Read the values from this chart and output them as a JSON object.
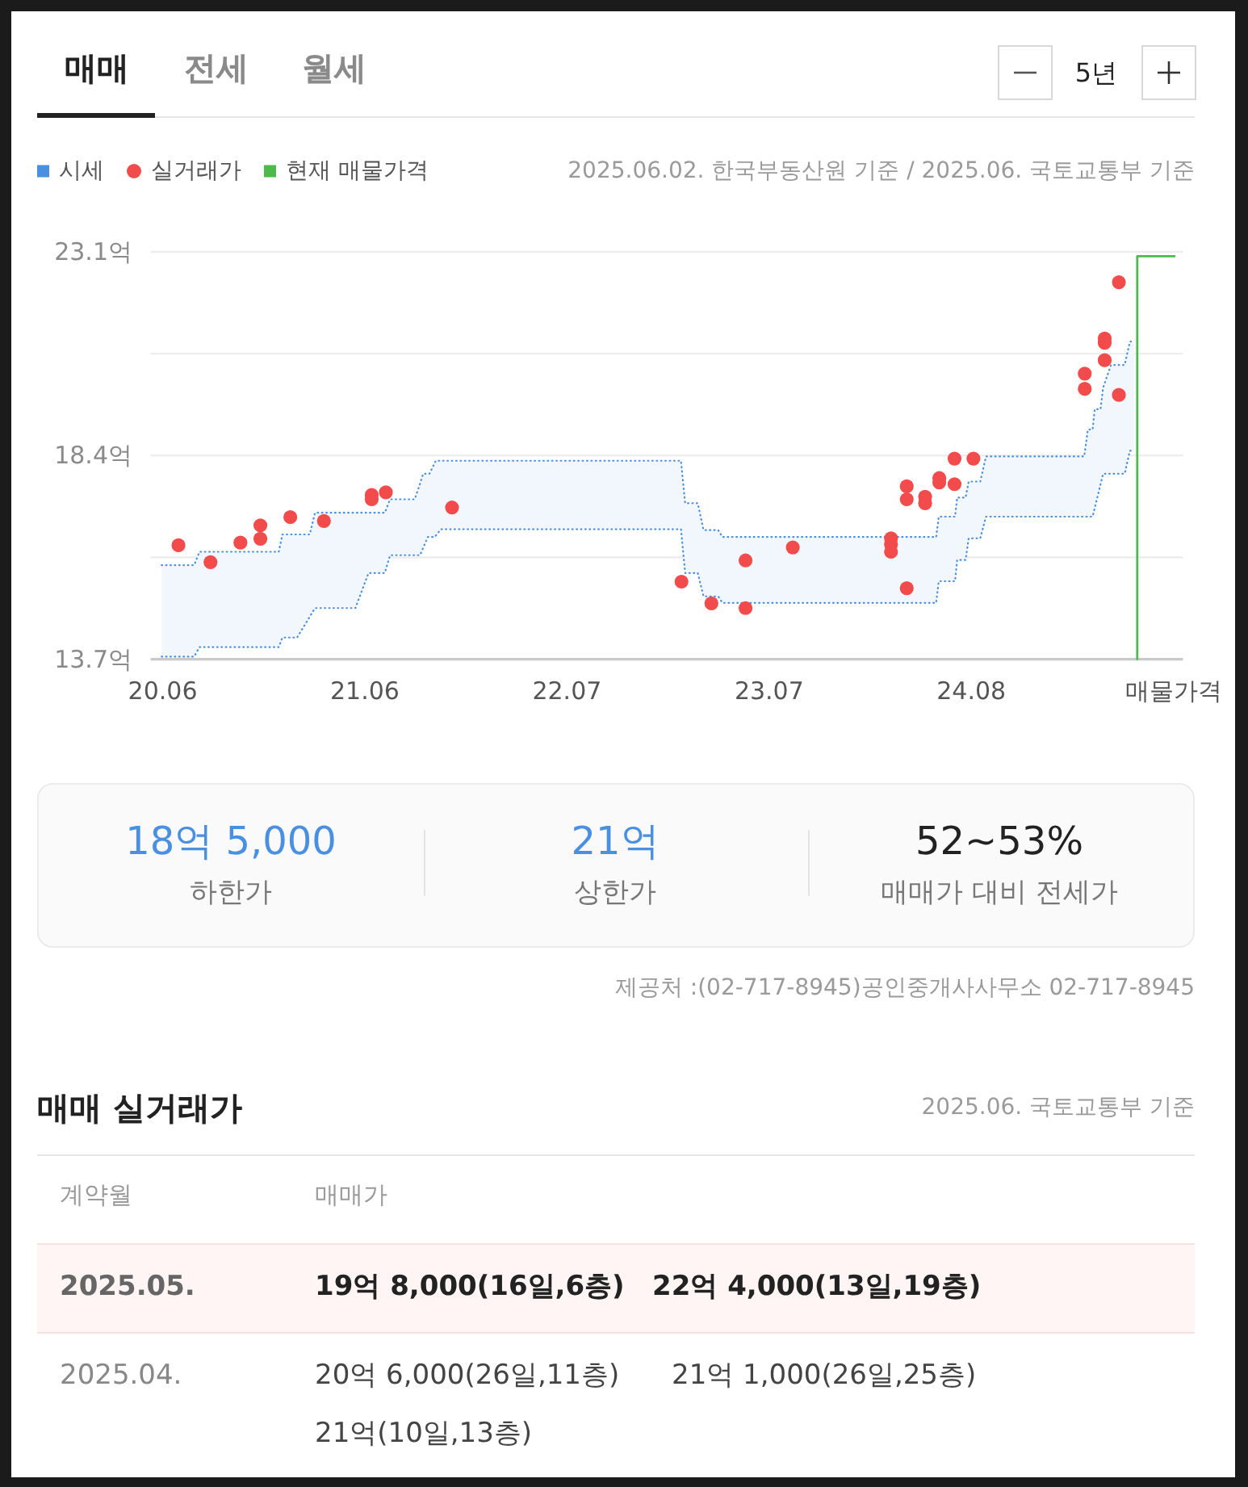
{
  "chart_data": {
    "type": "scatter",
    "annotations": [
      "매매",
      "전세",
      "월세",
      "5년",
      "2025.06.02. 한국부동산원 기준 / 2025.06. 국토교통부 기준",
      "18억 5,000",
      "하한가",
      "21억",
      "상한가",
      "52~53%",
      "매매가 대비 전세가",
      "제공처 :(02-717-8945)공인중개사사무소 02-717-8945",
      "매매 실거래가",
      "2025.06. 국토교통부 기준",
      "계약월",
      "매매가",
      "2025.05.",
      "19억 8,000(16일,6층)",
      "22억 4,000(13일,19층)",
      "2025.04.",
      "20억 6,000(26일,11층)",
      "21억 1,000(26일,25층)",
      "21억(10일,13층)"
    ],
    "series": [
      {
        "name": "시세",
        "type": "line",
        "color": "#4a90e2",
        "line_style": "dotted",
        "x": [
          "2020-05-30",
          "2020-07-31",
          "2020-08-10",
          "2021-01-08",
          "2021-01-15",
          "2021-02-12",
          "2021-03-08",
          "2021-03-18",
          "2021-06-03",
          "2021-06-28",
          "2021-07-29",
          "2021-08-08",
          "2021-09-24",
          "2021-10-04",
          "2021-10-10",
          "2021-10-19",
          "2021-10-22",
          "2021-11-01",
          "2021-11-03",
          "2021-11-13",
          "2023-02-13",
          "2023-02-21",
          "2023-03-17",
          "2023-03-28",
          "2023-04-25",
          "2023-05-03",
          "2024-06-13",
          "2024-06-18",
          "2024-07-19",
          "2024-07-23",
          "2024-08-08",
          "2024-08-14",
          "2024-09-05",
          "2024-09-16",
          "2025-03-22",
          "2025-03-29",
          "2025-04-07",
          "2025-04-11",
          "2025-04-22",
          "2025-04-27",
          "2025-05-12",
          "2025-06-07",
          "2025-06-17",
          "2025-06-25"
        ],
        "values": [
          15.87,
          15.87,
          16.18,
          16.18,
          16.58,
          16.58,
          16.58,
          17.08,
          17.08,
          17.08,
          17.08,
          17.39,
          17.39,
          17.75,
          17.98,
          17.98,
          17.98,
          18.23,
          18.28,
          18.28,
          18.28,
          17.3,
          17.3,
          16.68,
          16.68,
          16.52,
          16.52,
          16.99,
          16.99,
          17.43,
          17.43,
          17.8,
          17.8,
          18.38,
          18.38,
          19.0,
          19.0,
          19.47,
          19.47,
          19.97,
          20.49,
          20.49,
          21.03,
          21.03
        ],
        "upper": [
          15.87,
          15.87,
          16.18,
          16.18,
          16.58,
          16.58,
          16.58,
          17.08,
          17.08,
          17.08,
          17.08,
          17.39,
          17.39,
          17.75,
          17.98,
          17.98,
          17.98,
          18.23,
          18.28,
          18.28,
          18.28,
          17.3,
          17.3,
          16.68,
          16.68,
          16.52,
          16.52,
          16.99,
          16.99,
          17.43,
          17.43,
          17.8,
          17.8,
          18.38,
          18.38,
          19.0,
          19.0,
          19.47,
          19.47,
          19.97,
          20.49,
          20.49,
          21.03,
          21.03
        ],
        "lower": [
          13.76,
          13.76,
          13.98,
          13.98,
          14.2,
          14.2,
          14.68,
          14.88,
          14.88,
          15.69,
          15.69,
          16.1,
          16.1,
          16.1,
          16.27,
          16.52,
          16.52,
          16.52,
          16.55,
          16.7,
          16.7,
          15.69,
          15.69,
          15.15,
          15.15,
          15.0,
          15.0,
          15.5,
          15.5,
          15.99,
          15.99,
          16.49,
          16.49,
          16.99,
          16.99,
          16.99,
          16.99,
          17.19,
          17.73,
          17.98,
          17.98,
          17.98,
          18.51,
          18.51
        ]
      },
      {
        "type": "line",
        "color": "#4a90e2",
        "line_style": "dotted",
        "x": [
          "2020-05-30",
          "2020-07-31",
          "2020-08-10",
          "2021-01-08",
          "2021-01-15",
          "2021-02-12",
          "2021-03-08",
          "2021-03-18",
          "2021-06-03",
          "2021-06-28",
          "2021-07-29",
          "2021-08-08",
          "2021-09-24",
          "2021-10-04",
          "2021-10-10",
          "2021-10-19",
          "2021-10-22",
          "2021-11-01",
          "2021-11-03",
          "2021-11-13",
          "2023-02-13",
          "2023-02-21",
          "2023-03-17",
          "2023-03-28",
          "2023-04-25",
          "2023-05-03",
          "2024-06-13",
          "2024-06-18",
          "2024-07-19",
          "2024-07-23",
          "2024-08-08",
          "2024-08-14",
          "2024-09-05",
          "2024-09-16",
          "2025-03-22",
          "2025-03-29",
          "2025-04-07",
          "2025-04-11",
          "2025-04-22",
          "2025-04-27",
          "2025-05-12",
          "2025-06-07",
          "2025-06-17",
          "2025-06-25"
        ],
        "values": [
          13.76,
          13.76,
          13.98,
          13.98,
          14.2,
          14.2,
          14.68,
          14.88,
          14.88,
          15.69,
          15.69,
          16.1,
          16.1,
          16.1,
          16.27,
          16.52,
          16.52,
          16.52,
          16.55,
          16.7,
          16.7,
          15.69,
          15.69,
          15.15,
          15.15,
          15.0,
          15.0,
          15.5,
          15.5,
          15.99,
          15.99,
          16.49,
          16.49,
          16.99,
          16.99,
          16.99,
          16.99,
          17.19,
          17.73,
          17.98,
          17.98,
          17.98,
          18.51,
          18.51
        ]
      },
      {
        "name": "실거래가",
        "color": "#f24b4b",
        "marker": "circle",
        "x": [
          "2020-07-01",
          "2020-08-31",
          "2020-10-27",
          "2020-12-04",
          "2020-12-04",
          "2021-01-30",
          "2021-04-04",
          "2021-07-04",
          "2021-07-04",
          "2021-07-31",
          "2021-12-04",
          "2023-02-14",
          "2023-04-12",
          "2023-06-16",
          "2023-06-16",
          "2023-09-14",
          "2024-03-19",
          "2024-03-19",
          "2024-03-19",
          "2024-04-18",
          "2024-04-18",
          "2024-04-18",
          "2024-05-23",
          "2024-05-23",
          "2024-06-19",
          "2024-06-19",
          "2024-07-18",
          "2024-07-18",
          "2024-08-23",
          "2025-03-23",
          "2025-03-23",
          "2025-04-30",
          "2025-04-30",
          "2025-04-30",
          "2025-05-27",
          "2025-05-27"
        ],
        "values": [
          16.33,
          15.94,
          16.39,
          16.79,
          16.48,
          16.98,
          16.89,
          17.49,
          17.39,
          17.55,
          17.2,
          15.49,
          14.99,
          15.98,
          14.88,
          16.28,
          16.49,
          16.35,
          16.18,
          17.69,
          17.39,
          15.34,
          17.45,
          17.3,
          17.88,
          17.78,
          18.33,
          17.74,
          18.33,
          20.29,
          19.94,
          21.1,
          21.0,
          20.6,
          19.8,
          22.4
        ]
      },
      {
        "name": "현재 매물가격",
        "type": "line",
        "color": "#4cbb4c",
        "line_style": "solid",
        "x": [
          "2025-07-01",
          "2025-07-01",
          "2025-09-10"
        ],
        "values": [
          13.7,
          23.0,
          23.0
        ]
      }
    ],
    "xlim": [
      "2020-05-09",
      "2025-09-26"
    ],
    "xticks": [
      {
        "value": "2020-06-01",
        "label": "20.06"
      },
      {
        "value": "2021-06-21",
        "label": "21.06"
      },
      {
        "value": "2022-07-11",
        "label": "22.07"
      },
      {
        "value": "2023-07-31",
        "label": "23.07"
      },
      {
        "value": "2024-08-19",
        "label": "24.08"
      },
      {
        "value": "2025-09-08",
        "label": "매물가격"
      }
    ],
    "ylim": [
      13.7,
      23.1
    ],
    "yticks": [
      {
        "value": 13.7,
        "label": "13.7억"
      },
      {
        "value": 16.05,
        "label": null
      },
      {
        "value": 18.4,
        "label": "18.4억"
      },
      {
        "value": 20.75,
        "label": null
      },
      {
        "value": 23.1,
        "label": "23.1억"
      }
    ],
    "grid": "y",
    "legend": "top left"
  }
}
